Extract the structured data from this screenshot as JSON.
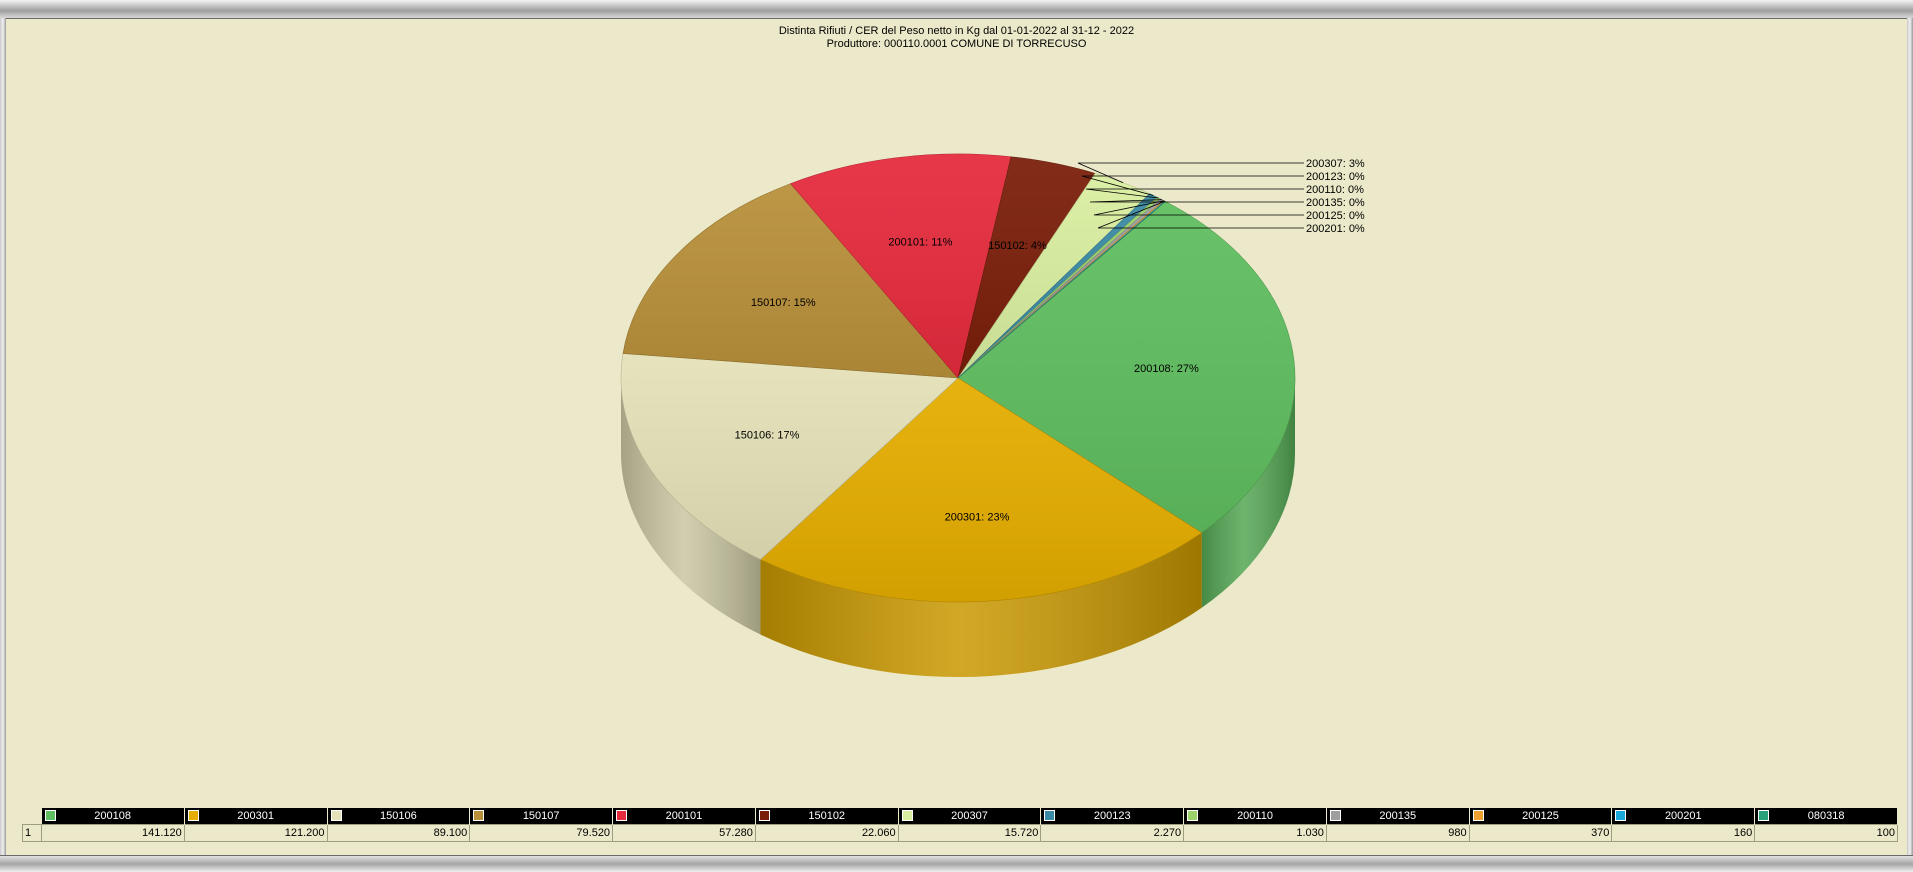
{
  "chart_data": {
    "type": "pie",
    "title": "Distinta Rifiuti / CER  del Peso netto in Kg dal 01-01-2022 al 31-12 - 2022",
    "subtitle": "Produttore: 000110.0001 COMUNE DI TORRECUSO",
    "row_index": "1",
    "slices": [
      {
        "label": "200108",
        "value": 141120,
        "display_value": "141.120",
        "pct_label": "200108: 27%",
        "color": "#5fbe5f"
      },
      {
        "label": "200301",
        "value": 121200,
        "display_value": "121.200",
        "pct_label": "200301: 23%",
        "color": "#e4ad00"
      },
      {
        "label": "150106",
        "value": 89100,
        "display_value": "89.100",
        "pct_label": "150106: 17%",
        "color": "#e5e1b8"
      },
      {
        "label": "150107",
        "value": 79520,
        "display_value": "79.520",
        "pct_label": "150107: 15%",
        "color": "#b8903a"
      },
      {
        "label": "200101",
        "value": 57280,
        "display_value": "57.280",
        "pct_label": "200101: 11%",
        "color": "#e52b3d"
      },
      {
        "label": "150102",
        "value": 22060,
        "display_value": "22.060",
        "pct_label": "150102: 4%",
        "color": "#7a1e0a"
      },
      {
        "label": "200307",
        "value": 15720,
        "display_value": "15.720",
        "pct_label": "200307: 3%",
        "color": "#d9eea0"
      },
      {
        "label": "200123",
        "value": 2270,
        "display_value": "2.270",
        "pct_label": "200123: 0%",
        "color": "#3a8aa4"
      },
      {
        "label": "200110",
        "value": 1030,
        "display_value": "1.030",
        "pct_label": "200110: 0%",
        "color": "#9bd36a"
      },
      {
        "label": "200135",
        "value": 980,
        "display_value": "980",
        "pct_label": "200135: 0%",
        "color": "#9e9e9e"
      },
      {
        "label": "200125",
        "value": 370,
        "display_value": "370",
        "pct_label": "200125: 0%",
        "color": "#f0a030"
      },
      {
        "label": "200201",
        "value": 160,
        "display_value": "160",
        "pct_label": "200201: 0%",
        "color": "#1aa8d8"
      },
      {
        "label": "080318",
        "value": 100,
        "display_value": "100",
        "pct_label": "",
        "color": "#2aa07a"
      }
    ]
  }
}
